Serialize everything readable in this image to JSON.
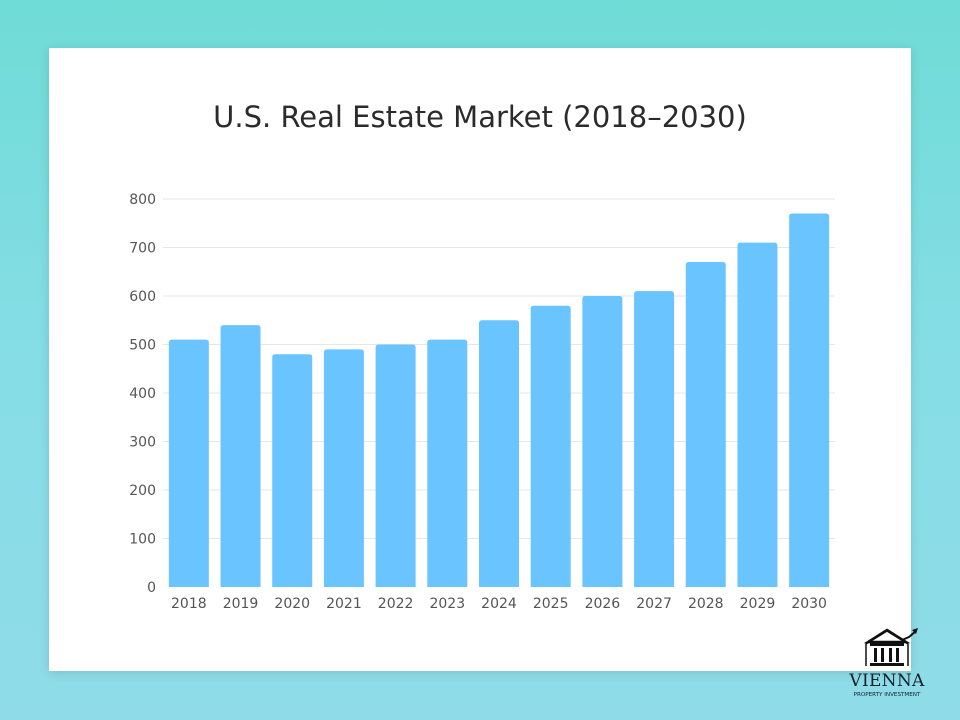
{
  "chart_data": {
    "type": "bar",
    "title": "U.S. Real Estate Market (2018–2030)",
    "xlabel": "",
    "ylabel": "",
    "categories": [
      "2018",
      "2019",
      "2020",
      "2021",
      "2022",
      "2023",
      "2024",
      "2025",
      "2026",
      "2027",
      "2028",
      "2029",
      "2030"
    ],
    "values": [
      510,
      540,
      480,
      490,
      500,
      510,
      550,
      580,
      600,
      610,
      670,
      710,
      770
    ],
    "ylim": [
      0,
      800
    ],
    "yticks": [
      0,
      100,
      200,
      300,
      400,
      500,
      600,
      700,
      800
    ],
    "grid": true,
    "legend": "none",
    "bar_color": "#6ac4ff"
  },
  "logo": {
    "name": "VIENNA",
    "subtitle": "PROPERTY INVESTMENT"
  }
}
